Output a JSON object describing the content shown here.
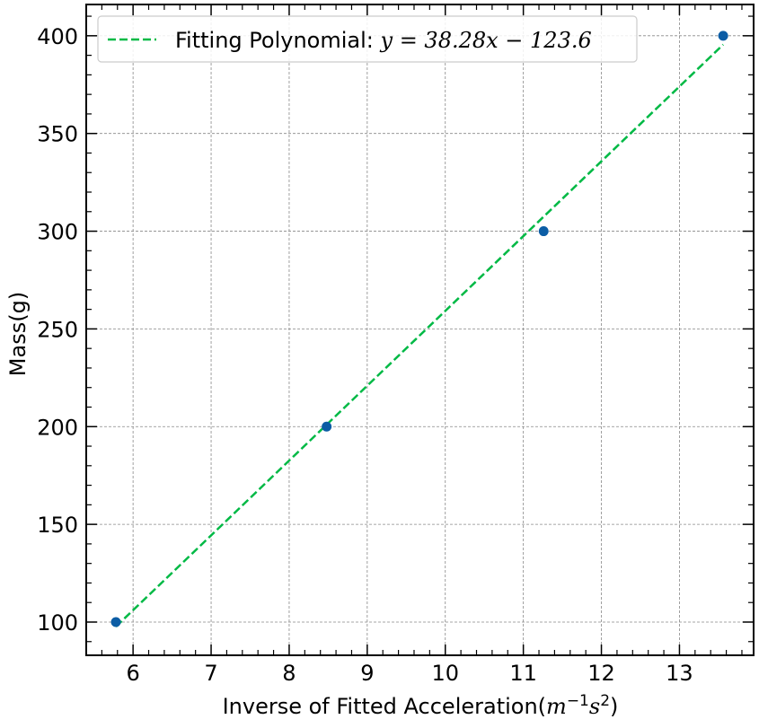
{
  "chart_data": {
    "type": "scatter",
    "title": "",
    "xlabel": {
      "text": "Inverse of Fitted Acceleration(",
      "unit_m": "m",
      "unit_m_exp": "−1",
      "unit_s": "s",
      "unit_s_exp": "2",
      "close": ")"
    },
    "ylabel": "Mass(g)",
    "xlim": [
      5.4,
      13.95
    ],
    "ylim": [
      83,
      416
    ],
    "xticks": [
      6,
      7,
      8,
      9,
      10,
      11,
      12,
      13
    ],
    "yticks": [
      100,
      150,
      200,
      250,
      300,
      350,
      400
    ],
    "grid": true,
    "legend_position": "top-left",
    "series": [
      {
        "kind": "scatter",
        "color": "#0C5DA5",
        "x": [
          5.78,
          8.48,
          11.26,
          13.56
        ],
        "y": [
          100,
          200,
          300,
          400
        ]
      },
      {
        "kind": "fit-line",
        "name": "Fitting Polynomial: y = 38.28x − 123.6",
        "color": "#00B945",
        "style": "dashed",
        "slope": 38.28,
        "intercept": -123.6,
        "x_range": [
          5.78,
          13.56
        ]
      }
    ],
    "legend": {
      "prefix": "Fitting Polynomial: ",
      "equation": "y = 38.28x − 123.6"
    }
  }
}
